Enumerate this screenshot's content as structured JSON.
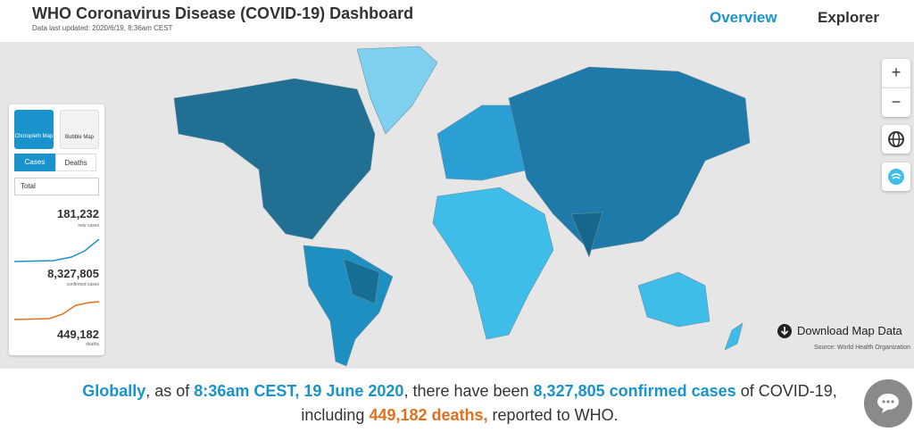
{
  "header": {
    "title": "WHO Coronavirus Disease (COVID-19) Dashboard",
    "updated": "Data last updated: 2020/6/19, 8:36am CEST",
    "nav": [
      "Overview",
      "Explorer"
    ]
  },
  "panel": {
    "map_types": [
      "Choropleth Map",
      "Bubble Map"
    ],
    "tabs": [
      "Cases",
      "Deaths"
    ],
    "filter": "Total",
    "stats": [
      {
        "value": "181,232",
        "label": "new cases"
      },
      {
        "value": "8,327,805",
        "label": "confirmed cases"
      },
      {
        "value": "449,182",
        "label": "deaths"
      }
    ]
  },
  "map": {
    "zoom": [
      "+",
      "−"
    ],
    "download": "Download Map Data",
    "source": "Source: World Health Organization"
  },
  "summary": [
    {
      "text": "Globally",
      "style": "blue"
    },
    {
      "text": ", as of ",
      "style": "plain"
    },
    {
      "text": "8:36am CEST, 19 June 2020",
      "style": "blue"
    },
    {
      "text": ", there have been ",
      "style": "plain"
    },
    {
      "text": "8,327,805 confirmed cases",
      "style": "blue"
    },
    {
      "text": " of COVID-19, including ",
      "style": "plain"
    },
    {
      "text": "449,182 deaths,",
      "style": "orange"
    },
    {
      "text": " reported to WHO.",
      "style": "plain"
    }
  ]
}
